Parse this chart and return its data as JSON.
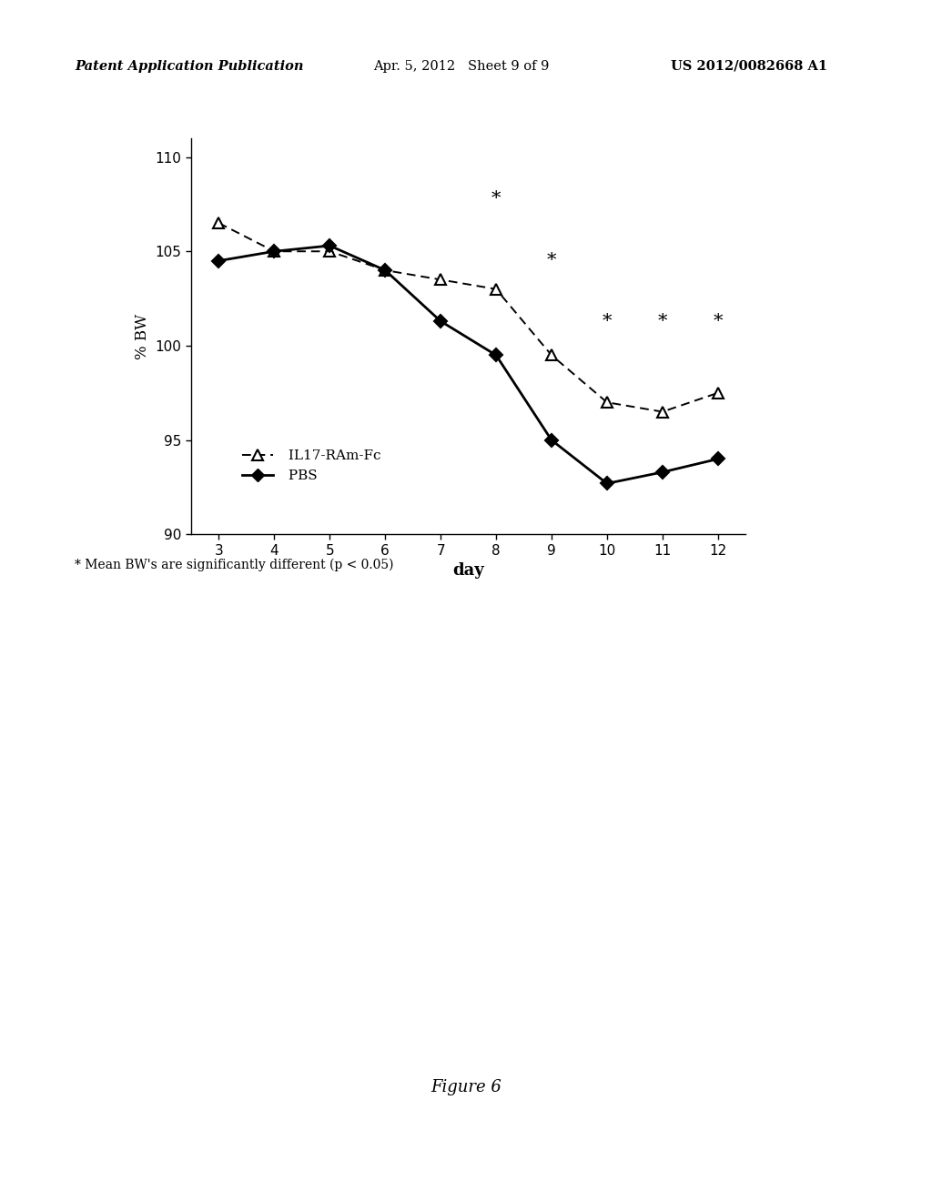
{
  "il17_x": [
    3,
    4,
    5,
    6,
    7,
    8,
    9,
    10,
    11,
    12
  ],
  "il17_y": [
    106.5,
    105.0,
    105.0,
    104.0,
    103.5,
    103.0,
    99.5,
    97.0,
    96.5,
    97.5
  ],
  "pbs_x": [
    3,
    4,
    5,
    6,
    7,
    8,
    9,
    10,
    11,
    12
  ],
  "pbs_y": [
    104.5,
    105.0,
    105.3,
    104.0,
    101.3,
    99.5,
    95.0,
    92.7,
    93.3,
    94.0
  ],
  "star_positions": [
    [
      8,
      107.8
    ],
    [
      9,
      104.5
    ],
    [
      10,
      101.3
    ],
    [
      11,
      101.3
    ],
    [
      12,
      101.3
    ]
  ],
  "xlabel": "day",
  "ylabel": "% BW",
  "ylim": [
    90,
    111
  ],
  "xlim": [
    2.5,
    12.5
  ],
  "yticks": [
    90,
    95,
    100,
    105,
    110
  ],
  "xticks": [
    3,
    4,
    5,
    6,
    7,
    8,
    9,
    10,
    11,
    12
  ],
  "legend_il17": "IL17-RAm-Fc",
  "legend_pbs": "PBS",
  "footnote": "* Mean BW's are significantly different (p < 0.05)",
  "figure_label": "Figure 6",
  "header_left": "Patent Application Publication",
  "header_mid": "Apr. 5, 2012   Sheet 9 of 9",
  "header_right": "US 2012/0082668 A1",
  "background_color": "#ffffff"
}
